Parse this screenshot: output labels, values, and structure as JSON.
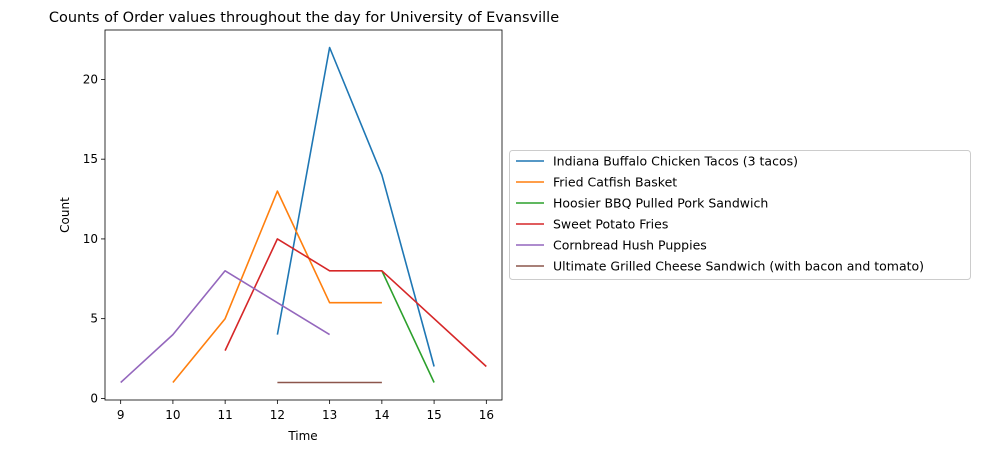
{
  "chart_data": {
    "type": "line",
    "title": "Counts of Order values throughout the day for University of Evansville",
    "xlabel": "Time",
    "ylabel": "Count",
    "xlim": [
      8.7,
      16.3
    ],
    "ylim": [
      -0.1,
      23.1
    ],
    "xticks": [
      9,
      10,
      11,
      12,
      13,
      14,
      15,
      16
    ],
    "yticks": [
      0,
      5,
      10,
      15,
      20
    ],
    "grid": false,
    "legend_position": "center-left outside",
    "series": [
      {
        "name": "Indiana Buffalo Chicken Tacos (3 tacos)",
        "color": "#1f77b4",
        "x": [
          12,
          13,
          14,
          15
        ],
        "y": [
          4,
          22,
          14,
          2
        ]
      },
      {
        "name": "Fried Catfish Basket",
        "color": "#ff7f0e",
        "x": [
          10,
          11,
          12,
          13,
          14
        ],
        "y": [
          1,
          5,
          13,
          6,
          6
        ]
      },
      {
        "name": "Hoosier BBQ Pulled Pork Sandwich",
        "color": "#2ca02c",
        "x": [
          14,
          15
        ],
        "y": [
          8,
          1
        ]
      },
      {
        "name": "Sweet Potato Fries",
        "color": "#d62728",
        "x": [
          11,
          12,
          13,
          14,
          16
        ],
        "y": [
          3,
          10,
          8,
          8,
          2
        ]
      },
      {
        "name": "Cornbread Hush Puppies",
        "color": "#9467bd",
        "x": [
          9,
          10,
          11,
          13
        ],
        "y": [
          1,
          4,
          8,
          4
        ]
      },
      {
        "name": "Ultimate Grilled Cheese Sandwich (with bacon and tomato)",
        "color": "#8c564b",
        "x": [
          12,
          13,
          14
        ],
        "y": [
          1,
          1,
          1
        ]
      }
    ]
  }
}
